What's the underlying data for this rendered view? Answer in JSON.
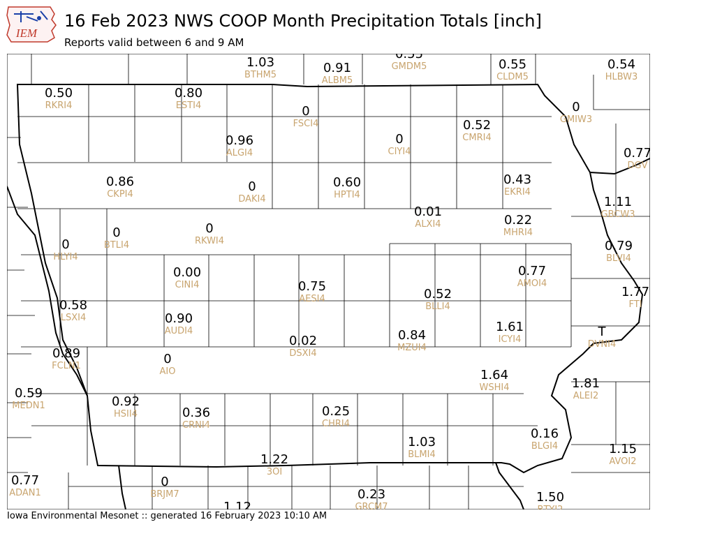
{
  "header": {
    "title": "16 Feb 2023 NWS COOP Month Precipitation Totals [inch]",
    "subtitle": "Reports valid between 6 and 9 AM"
  },
  "logo": {
    "text": "IEM"
  },
  "footer": {
    "text": "Iowa Environmental Mesonet :: generated 16 February 2023 10:10 AM"
  },
  "colors": {
    "value": "#000000",
    "station": "#c8a46e",
    "county_line": "#000000",
    "logo": "#c0392b"
  },
  "stations": [
    {
      "id": "BTHM5",
      "value": "1.03"
    },
    {
      "id": "ALBM5",
      "value": "0.91"
    },
    {
      "id": "GMDM5",
      "value": "0.55"
    },
    {
      "id": "CLDM5",
      "value": "0.55"
    },
    {
      "id": "HLBW3",
      "value": "0.54"
    },
    {
      "id": "RKRI4",
      "value": "0.50"
    },
    {
      "id": "ESTI4",
      "value": "0.80"
    },
    {
      "id": "FSCI4",
      "value": "0"
    },
    {
      "id": "GMIW3",
      "value": "0"
    },
    {
      "id": "CMRI4",
      "value": "0.52"
    },
    {
      "id": "ALGI4",
      "value": "0.96"
    },
    {
      "id": "CIYI4",
      "value": "0"
    },
    {
      "id": "DGV",
      "value": "0.77"
    },
    {
      "id": "CKPI4",
      "value": "0.86"
    },
    {
      "id": "DAKI4",
      "value": "0"
    },
    {
      "id": "HPTI4",
      "value": "0.60"
    },
    {
      "id": "EKRI4",
      "value": "0.43"
    },
    {
      "id": "GBCW3",
      "value": "1.11"
    },
    {
      "id": "ALXI4",
      "value": "0.01"
    },
    {
      "id": "BTLI4",
      "value": "0"
    },
    {
      "id": "RKWI4",
      "value": "0"
    },
    {
      "id": "MHRI4",
      "value": "0.22"
    },
    {
      "id": "HLYI4",
      "value": "0"
    },
    {
      "id": "BLVI4",
      "value": "0.79"
    },
    {
      "id": "CINI4",
      "value": "0.00"
    },
    {
      "id": "AMOI4",
      "value": "0.77"
    },
    {
      "id": "AESI4",
      "value": "0.75"
    },
    {
      "id": "FTI",
      "value": "1.77"
    },
    {
      "id": "BLLI4",
      "value": "0.52"
    },
    {
      "id": "LSXI4",
      "value": "0.58"
    },
    {
      "id": "AUDI4",
      "value": "0.90"
    },
    {
      "id": "ICYI4",
      "value": "1.61"
    },
    {
      "id": "DVNI4",
      "value": "T"
    },
    {
      "id": "MZUI4",
      "value": "0.84"
    },
    {
      "id": "DSXI4",
      "value": "0.02"
    },
    {
      "id": "FCLN1",
      "value": "0.89"
    },
    {
      "id": "AIO",
      "value": "0"
    },
    {
      "id": "WSHI4",
      "value": "1.64"
    },
    {
      "id": "ALEI2",
      "value": "1.81"
    },
    {
      "id": "MEDN1",
      "value": "0.59"
    },
    {
      "id": "HSII4",
      "value": "0.92"
    },
    {
      "id": "CRNI4",
      "value": "0.36"
    },
    {
      "id": "CHRI4",
      "value": "0.25"
    },
    {
      "id": "BLGI4",
      "value": "0.16"
    },
    {
      "id": "BLMI4",
      "value": "1.03"
    },
    {
      "id": "AVOI2",
      "value": "1.15"
    },
    {
      "id": "3OI",
      "value": "1.22"
    },
    {
      "id": "ADAN1",
      "value": "0.77"
    },
    {
      "id": "BRJM7",
      "value": "0"
    },
    {
      "id": "GRCM7",
      "value": "0.23"
    },
    {
      "id": "BTYI2",
      "value": "1.50"
    },
    {
      "id": "",
      "value": "1.12"
    }
  ]
}
